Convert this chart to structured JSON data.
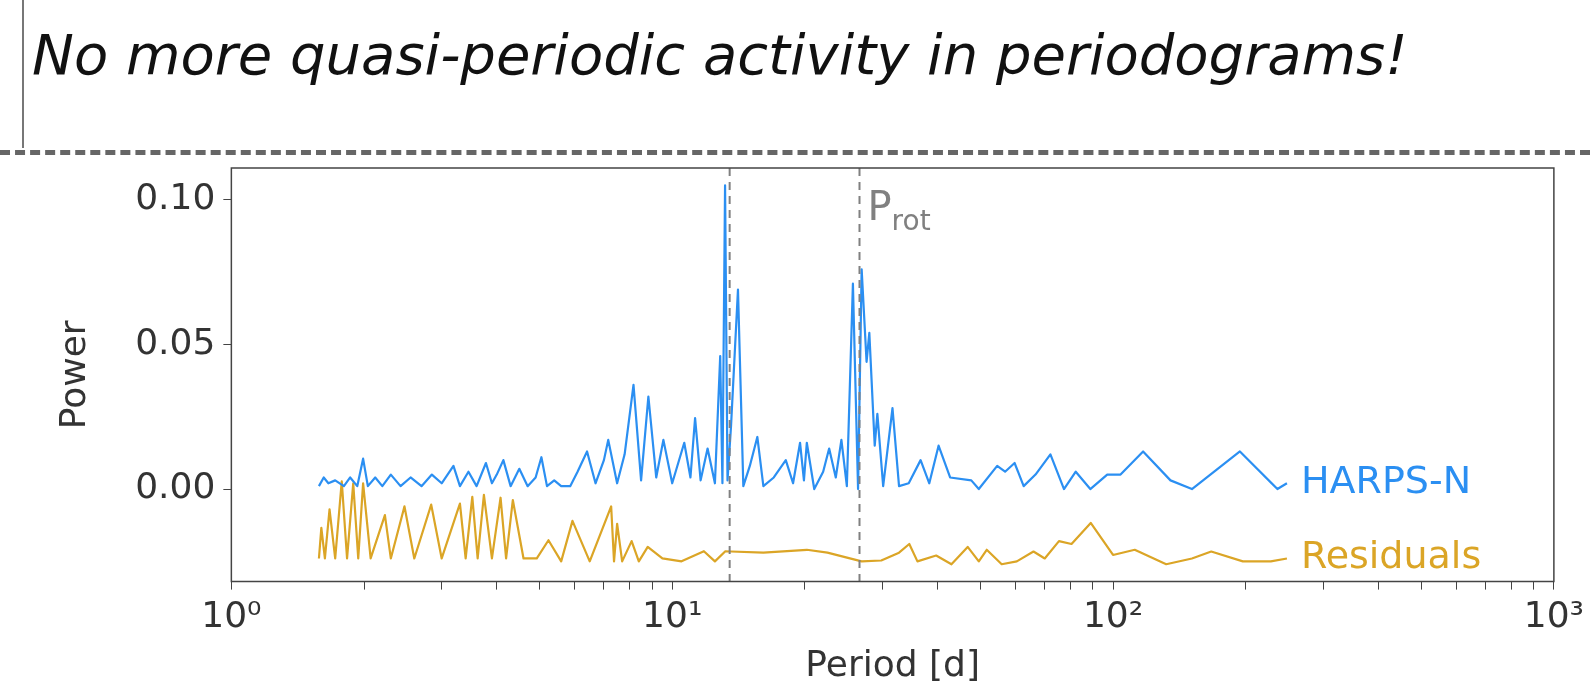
{
  "chart_data": {
    "type": "line",
    "title": "No more quasi-periodic activity in periodograms!",
    "xlabel": "Period [d]",
    "ylabel": "Power",
    "xlim": [
      1,
      1000
    ],
    "ylim": [
      -0.032,
      0.111
    ],
    "xticks": [
      {
        "value": 1,
        "label": "10⁰"
      },
      {
        "value": 2,
        "label": null
      },
      {
        "value": 3,
        "label": null
      },
      {
        "value": 4,
        "label": null
      },
      {
        "value": 5,
        "label": null
      },
      {
        "value": 6,
        "label": null
      },
      {
        "value": 7,
        "label": null
      },
      {
        "value": 8,
        "label": null
      },
      {
        "value": 9,
        "label": null
      },
      {
        "value": 10,
        "label": "10¹"
      },
      {
        "value": 20,
        "label": null
      },
      {
        "value": 30,
        "label": null
      },
      {
        "value": 40,
        "label": null
      },
      {
        "value": 50,
        "label": null
      },
      {
        "value": 60,
        "label": null
      },
      {
        "value": 70,
        "label": null
      },
      {
        "value": 80,
        "label": null
      },
      {
        "value": 90,
        "label": null
      },
      {
        "value": 100,
        "label": "10²"
      },
      {
        "value": 200,
        "label": null
      },
      {
        "value": 300,
        "label": null
      },
      {
        "value": 400,
        "label": null
      },
      {
        "value": 500,
        "label": null
      },
      {
        "value": 600,
        "label": null
      },
      {
        "value": 700,
        "label": null
      },
      {
        "value": 800,
        "label": null
      },
      {
        "value": 900,
        "label": null
      },
      {
        "value": 1000,
        "label": "10³"
      }
    ],
    "yticks": [
      {
        "value": 0,
        "label": "0.00"
      },
      {
        "value": 0.05,
        "label": "0.05"
      },
      {
        "value": 0.1,
        "label": "0.10"
      }
    ],
    "log": "x",
    "grid": false,
    "legend": false,
    "marker": "none",
    "line_style": "solid",
    "ref_lines": [
      {
        "axis": "x",
        "value": 13.5,
        "label": null,
        "color": "#808080",
        "line_style": "dashed"
      },
      {
        "axis": "x",
        "value": 26.6,
        "label": "P$_{rot}$",
        "color": "#808080",
        "line_style": "dashed"
      }
    ],
    "series": [
      {
        "name": "HARPS-N",
        "color": "#2b8ff2",
        "x": [
          1.58,
          1.62,
          1.66,
          1.72,
          1.8,
          1.86,
          1.93,
          1.99,
          2.04,
          2.12,
          2.2,
          2.3,
          2.42,
          2.55,
          2.7,
          2.85,
          3.0,
          3.19,
          3.3,
          3.45,
          3.6,
          3.78,
          3.9,
          4.0,
          4.14,
          4.3,
          4.5,
          4.7,
          4.9,
          5.05,
          5.2,
          5.4,
          5.6,
          5.87,
          6.1,
          6.41,
          6.7,
          7.0,
          7.16,
          7.5,
          7.8,
          8.17,
          8.5,
          8.83,
          9.2,
          9.55,
          10.0,
          10.65,
          11.0,
          11.27,
          11.6,
          12.03,
          12.5,
          12.85,
          13.0,
          13.18,
          13.35,
          13.6,
          14.1,
          14.5,
          15.0,
          15.6,
          16.1,
          17.0,
          18.1,
          18.8,
          19.5,
          19.9,
          20.2,
          21.0,
          22.0,
          22.7,
          23.5,
          24.2,
          24.9,
          25.7,
          26.4,
          26.9,
          27.6,
          28.0,
          28.8,
          29.2,
          30.1,
          31.6,
          32.7,
          34.4,
          36.6,
          38.3,
          40.2,
          42.7,
          47.7,
          49.6,
          54.6,
          56.9,
          59.8,
          62.7,
          66.7,
          72.1,
          77.4,
          82.3,
          88.8,
          97.0,
          104,
          117,
          135,
          151,
          194,
          236,
          248
        ],
        "values": [
          0.001,
          0.004,
          0.002,
          0.003,
          0.001,
          0.004,
          0.001,
          0.0105,
          0.001,
          0.004,
          0.001,
          0.005,
          0.001,
          0.004,
          0.001,
          0.005,
          0.002,
          0.008,
          0.001,
          0.006,
          0.001,
          0.009,
          0.002,
          0.005,
          0.01,
          0.001,
          0.007,
          0.001,
          0.004,
          0.011,
          0.001,
          0.003,
          0.001,
          0.001,
          0.006,
          0.013,
          0.002,
          0.01,
          0.017,
          0.002,
          0.012,
          0.036,
          0.003,
          0.032,
          0.004,
          0.017,
          0.002,
          0.016,
          0.004,
          0.0245,
          0.003,
          0.014,
          0.002,
          0.046,
          0.002,
          0.105,
          0.003,
          0.022,
          0.069,
          0.001,
          0.008,
          0.018,
          0.001,
          0.004,
          0.01,
          0.002,
          0.016,
          0.003,
          0.016,
          0.0,
          0.006,
          0.014,
          0.004,
          0.017,
          0.001,
          0.071,
          0.0,
          0.076,
          0.044,
          0.054,
          0.015,
          0.026,
          0.001,
          0.028,
          0.001,
          0.002,
          0.01,
          0.002,
          0.015,
          0.004,
          0.003,
          0.0,
          0.008,
          0.006,
          0.009,
          0.001,
          0.005,
          0.012,
          0.0,
          0.006,
          0.0,
          0.005,
          0.005,
          0.013,
          0.003,
          0.0,
          0.013,
          0.0,
          0.002
        ]
      },
      {
        "name": "Residuals",
        "color": "#dba526",
        "x": [
          1.58,
          1.6,
          1.63,
          1.67,
          1.72,
          1.78,
          1.83,
          1.89,
          1.94,
          1.99,
          2.07,
          2.23,
          2.3,
          2.47,
          2.6,
          2.84,
          3.0,
          3.3,
          3.4,
          3.52,
          3.62,
          3.74,
          3.9,
          4.08,
          4.2,
          4.35,
          4.6,
          4.93,
          5.24,
          5.6,
          5.94,
          6.5,
          7.27,
          7.38,
          7.5,
          7.7,
          8.09,
          8.4,
          8.8,
          9.5,
          10.5,
          11.8,
          12.5,
          13.2,
          13.6,
          16.1,
          20.2,
          22.5,
          26.9,
          29.8,
          32.7,
          34.5,
          36,
          39.7,
          43,
          46.8,
          49.6,
          51.7,
          55.9,
          60.5,
          66,
          70,
          75.4,
          80.5,
          89,
          100,
          112,
          132,
          151,
          167,
          197,
          228,
          248
        ],
        "values": [
          -0.024,
          -0.0134,
          -0.024,
          -0.007,
          -0.024,
          0.0027,
          -0.024,
          0.002,
          -0.024,
          0.002,
          -0.024,
          -0.009,
          -0.024,
          -0.006,
          -0.024,
          -0.0054,
          -0.024,
          -0.005,
          -0.024,
          -0.0027,
          -0.024,
          -0.002,
          -0.024,
          -0.003,
          -0.024,
          -0.0038,
          -0.024,
          -0.024,
          -0.0177,
          -0.025,
          -0.011,
          -0.025,
          -0.006,
          -0.025,
          -0.012,
          -0.025,
          -0.018,
          -0.025,
          -0.02,
          -0.024,
          -0.025,
          -0.0215,
          -0.025,
          -0.0215,
          -0.0216,
          -0.022,
          -0.021,
          -0.022,
          -0.025,
          -0.0247,
          -0.022,
          -0.019,
          -0.025,
          -0.023,
          -0.026,
          -0.02,
          -0.025,
          -0.021,
          -0.026,
          -0.025,
          -0.0216,
          -0.024,
          -0.018,
          -0.019,
          -0.0117,
          -0.0228,
          -0.021,
          -0.026,
          -0.024,
          -0.0216,
          -0.025,
          -0.025,
          -0.024
        ]
      }
    ]
  }
}
